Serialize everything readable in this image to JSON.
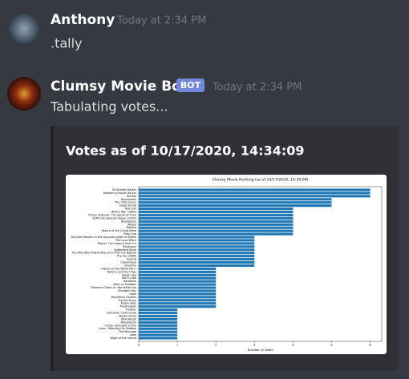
{
  "messages": [
    {
      "author": "Anthony",
      "time": "Today at 2:34 PM",
      "text": ".tally"
    },
    {
      "author": "Clumsy Movie Bot",
      "badge": "BOT",
      "time": "Today at 2:34 PM",
      "text": "Tabulating votes..."
    }
  ],
  "embed": {
    "title": "Votes as of 10/17/2020, 14:34:09"
  },
  "chart_data": {
    "type": "barh",
    "title": "Clumsy Movie Ranking (as of 10/17/2020, 14:34:09)",
    "x_label": "Number of Votes",
    "color": "#1f77b4",
    "categories": [
      "50 Shades Darker",
      "Random b-movie (to be)",
      "Society",
      "Braveheart",
      "The Little Hours",
      "Judge Dredd",
      "Tank Girl",
      "Winter War (1989)",
      "Prince of Persia: The Sands of Time",
      "Buffy the Vampire Slayer (1992)",
      "Beetlejuice",
      "Willow",
      "Twilight",
      "Return of the Living Dead",
      "They Live",
      "Cannibal Women in the Avocado Jungle of Death",
      "The Love Witch",
      "Titanic: The Legend Goes On",
      "Ravenous",
      "Battlefield Earth",
      "The Man Who Killed Hitler and Then the Bigfoot",
      "The Fly (1986)",
      "Cyborg",
      "Cyberchase",
      "Gremlins",
      "History of the World Part I",
      "Tammy and the T-Rex",
      "Death Spa",
      "Don't Look",
      "Hardware",
      "Alien vs Predator",
      "Diamond Cobra vs. the White Fox",
      "Phantom Boy",
      "Hook",
      "Big Money Hustlas",
      "Psycho Shark",
      "Purple Rain",
      "Poultrygeist",
      "Flubber",
      "Suburban Commando",
      "Masterminds",
      "Total Recall",
      "Mausoleum",
      "Tucker and Dale vs Evil",
      "Lexx: I Worship His Shadow",
      "The Marriage",
      "Jaws",
      "Night of the Comet"
    ],
    "values": [
      6,
      6,
      6,
      5,
      5,
      5,
      4,
      4,
      4,
      4,
      4,
      4,
      4,
      4,
      4,
      3,
      3,
      3,
      3,
      3,
      3,
      3,
      3,
      3,
      3,
      2,
      2,
      2,
      2,
      2,
      2,
      2,
      2,
      2,
      2,
      2,
      2,
      2,
      1,
      1,
      1,
      1,
      1,
      1,
      1,
      1,
      1,
      1
    ],
    "xlim": [
      0,
      6.3
    ],
    "xticks": [
      0,
      1,
      2,
      3,
      4,
      5,
      6
    ]
  }
}
